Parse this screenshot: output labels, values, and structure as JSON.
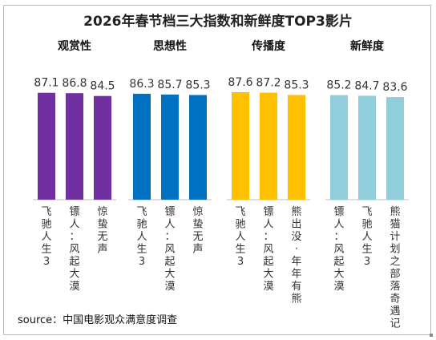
{
  "chart_data": {
    "type": "bar",
    "title": "2026年春节档三大指数和新鲜度TOP3影片",
    "source": "source：中国电影观众满意度调查",
    "ylim": [
      0,
      100
    ],
    "groups": [
      {
        "name": "观赏性",
        "color": "#7030a0",
        "categories": [
          "飞驰人生3",
          "镖人：风起大漠",
          "惊蛰无声"
        ],
        "values": [
          87.1,
          86.8,
          84.5
        ]
      },
      {
        "name": "思想性",
        "color": "#0070c0",
        "categories": [
          "飞驰人生3",
          "镖人：风起大漠",
          "惊蛰无声"
        ],
        "values": [
          86.3,
          85.7,
          85.3
        ]
      },
      {
        "name": "传播度",
        "color": "#ffc000",
        "categories": [
          "飞驰人生3",
          "镖人：风起大漠",
          "熊出没·年年有熊"
        ],
        "values": [
          87.6,
          87.2,
          85.3
        ]
      },
      {
        "name": "新鲜度",
        "color": "#92cddc",
        "categories": [
          "镖人：风起大漠",
          "飞驰人生3",
          "熊猫计划之部落奇遇记"
        ],
        "values": [
          85.2,
          84.7,
          83.6
        ]
      }
    ]
  }
}
